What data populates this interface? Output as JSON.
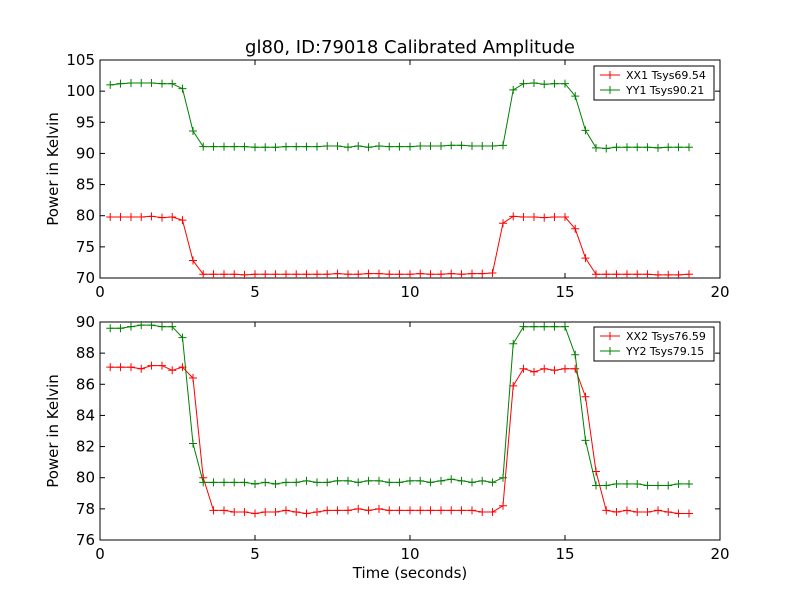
{
  "chart_data": [
    {
      "type": "line",
      "title": "gl80, ID:79018 Calibrated Amplitude",
      "xlabel": "",
      "ylabel": "Power in Kelvin",
      "xlim": [
        0,
        20
      ],
      "ylim": [
        70,
        105
      ],
      "xticks": [
        0,
        5,
        10,
        15,
        20
      ],
      "yticks": [
        70,
        75,
        80,
        85,
        90,
        95,
        100,
        105
      ],
      "grid": false,
      "legend_position": "top-right",
      "series": [
        {
          "name": "XX1 Tsys69.54",
          "color": "#ff0000",
          "x": [
            0.33,
            0.66,
            1.0,
            1.33,
            1.66,
            2.0,
            2.33,
            2.66,
            3.0,
            3.33,
            3.66,
            4.0,
            4.33,
            4.66,
            5.0,
            5.33,
            5.66,
            6.0,
            6.33,
            6.66,
            7.0,
            7.33,
            7.66,
            8.0,
            8.33,
            8.66,
            9.0,
            9.33,
            9.66,
            10.0,
            10.33,
            10.66,
            11.0,
            11.33,
            11.66,
            12.0,
            12.33,
            12.66,
            13.0,
            13.33,
            13.66,
            14.0,
            14.33,
            14.66,
            15.0,
            15.33,
            15.66,
            16.0,
            16.33,
            16.66,
            17.0,
            17.33,
            17.66,
            18.0,
            18.33,
            18.66,
            19.0
          ],
          "y": [
            79.8,
            79.8,
            79.8,
            79.8,
            79.9,
            79.7,
            79.8,
            79.3,
            72.8,
            70.6,
            70.6,
            70.6,
            70.6,
            70.5,
            70.6,
            70.6,
            70.6,
            70.6,
            70.6,
            70.6,
            70.6,
            70.6,
            70.7,
            70.6,
            70.6,
            70.7,
            70.7,
            70.6,
            70.6,
            70.6,
            70.7,
            70.6,
            70.6,
            70.7,
            70.6,
            70.7,
            70.7,
            70.8,
            78.8,
            79.9,
            79.8,
            79.8,
            79.7,
            79.8,
            79.8,
            77.9,
            73.2,
            70.6,
            70.6,
            70.6,
            70.6,
            70.6,
            70.6,
            70.5,
            70.5,
            70.5,
            70.6
          ]
        },
        {
          "name": "YY1 Tsys90.21",
          "color": "#008000",
          "x": [
            0.33,
            0.66,
            1.0,
            1.33,
            1.66,
            2.0,
            2.33,
            2.66,
            3.0,
            3.33,
            3.66,
            4.0,
            4.33,
            4.66,
            5.0,
            5.33,
            5.66,
            6.0,
            6.33,
            6.66,
            7.0,
            7.33,
            7.66,
            8.0,
            8.33,
            8.66,
            9.0,
            9.33,
            9.66,
            10.0,
            10.33,
            10.66,
            11.0,
            11.33,
            11.66,
            12.0,
            12.33,
            12.66,
            13.0,
            13.33,
            13.66,
            14.0,
            14.33,
            14.66,
            15.0,
            15.33,
            15.66,
            16.0,
            16.33,
            16.66,
            17.0,
            17.33,
            17.66,
            18.0,
            18.33,
            18.66,
            19.0
          ],
          "y": [
            101.0,
            101.2,
            101.3,
            101.3,
            101.3,
            101.2,
            101.2,
            100.4,
            93.6,
            91.1,
            91.1,
            91.1,
            91.1,
            91.1,
            91.0,
            91.0,
            91.0,
            91.1,
            91.1,
            91.1,
            91.1,
            91.2,
            91.2,
            91.0,
            91.2,
            91.0,
            91.2,
            91.1,
            91.1,
            91.1,
            91.2,
            91.2,
            91.2,
            91.3,
            91.3,
            91.2,
            91.2,
            91.2,
            91.3,
            100.2,
            101.2,
            101.3,
            101.1,
            101.2,
            101.2,
            99.2,
            93.7,
            90.9,
            90.8,
            91.0,
            91.0,
            91.0,
            91.0,
            90.9,
            91.0,
            91.0,
            91.0
          ]
        }
      ]
    },
    {
      "type": "line",
      "title": "",
      "xlabel": "Time (seconds)",
      "ylabel": "Power in Kelvin",
      "xlim": [
        0,
        20
      ],
      "ylim": [
        76,
        90
      ],
      "xticks": [
        0,
        5,
        10,
        15,
        20
      ],
      "yticks": [
        76,
        78,
        80,
        82,
        84,
        86,
        88,
        90
      ],
      "grid": false,
      "legend_position": "top-right",
      "series": [
        {
          "name": "XX2 Tsys76.59",
          "color": "#ff0000",
          "x": [
            0.33,
            0.66,
            1.0,
            1.33,
            1.66,
            2.0,
            2.33,
            2.66,
            3.0,
            3.33,
            3.66,
            4.0,
            4.33,
            4.66,
            5.0,
            5.33,
            5.66,
            6.0,
            6.33,
            6.66,
            7.0,
            7.33,
            7.66,
            8.0,
            8.33,
            8.66,
            9.0,
            9.33,
            9.66,
            10.0,
            10.33,
            10.66,
            11.0,
            11.33,
            11.66,
            12.0,
            12.33,
            12.66,
            13.0,
            13.33,
            13.66,
            14.0,
            14.33,
            14.66,
            15.0,
            15.33,
            15.66,
            16.0,
            16.33,
            16.66,
            17.0,
            17.33,
            17.66,
            18.0,
            18.33,
            18.66,
            19.0
          ],
          "y": [
            87.1,
            87.1,
            87.1,
            87.0,
            87.2,
            87.2,
            86.9,
            87.1,
            86.4,
            80.0,
            77.9,
            77.9,
            77.8,
            77.8,
            77.7,
            77.8,
            77.8,
            77.9,
            77.8,
            77.7,
            77.8,
            77.9,
            77.9,
            77.9,
            78.0,
            77.9,
            78.0,
            77.9,
            77.9,
            77.9,
            77.9,
            77.9,
            77.9,
            77.9,
            77.9,
            77.9,
            77.8,
            77.8,
            78.2,
            85.9,
            87.0,
            86.8,
            87.0,
            86.9,
            87.0,
            87.0,
            85.2,
            80.4,
            77.9,
            77.8,
            77.9,
            77.8,
            77.8,
            77.9,
            77.8,
            77.7,
            77.7
          ],
          "x_offset_note": ""
        },
        {
          "name": "YY2 Tsys79.15",
          "color": "#008000",
          "x": [
            0.33,
            0.66,
            1.0,
            1.33,
            1.66,
            2.0,
            2.33,
            2.66,
            3.0,
            3.33,
            3.66,
            4.0,
            4.33,
            4.66,
            5.0,
            5.33,
            5.66,
            6.0,
            6.33,
            6.66,
            7.0,
            7.33,
            7.66,
            8.0,
            8.33,
            8.66,
            9.0,
            9.33,
            9.66,
            10.0,
            10.33,
            10.66,
            11.0,
            11.33,
            11.66,
            12.0,
            12.33,
            12.66,
            13.0,
            13.33,
            13.66,
            14.0,
            14.33,
            14.66,
            15.0,
            15.33,
            15.66,
            16.0,
            16.33,
            16.66,
            17.0,
            17.33,
            17.66,
            18.0,
            18.33,
            18.66,
            19.0
          ],
          "y": [
            89.6,
            89.6,
            89.7,
            89.8,
            89.8,
            89.7,
            89.7,
            89.0,
            82.2,
            79.7,
            79.7,
            79.7,
            79.7,
            79.7,
            79.6,
            79.7,
            79.6,
            79.7,
            79.7,
            79.8,
            79.7,
            79.7,
            79.8,
            79.8,
            79.7,
            79.8,
            79.8,
            79.7,
            79.7,
            79.8,
            79.8,
            79.7,
            79.8,
            79.9,
            79.8,
            79.7,
            79.8,
            79.7,
            80.0,
            88.6,
            89.7,
            89.7,
            89.7,
            89.7,
            89.7,
            87.9,
            82.4,
            79.5,
            79.5,
            79.6,
            79.6,
            79.6,
            79.5,
            79.5,
            79.5,
            79.6,
            79.6
          ]
        }
      ]
    }
  ]
}
